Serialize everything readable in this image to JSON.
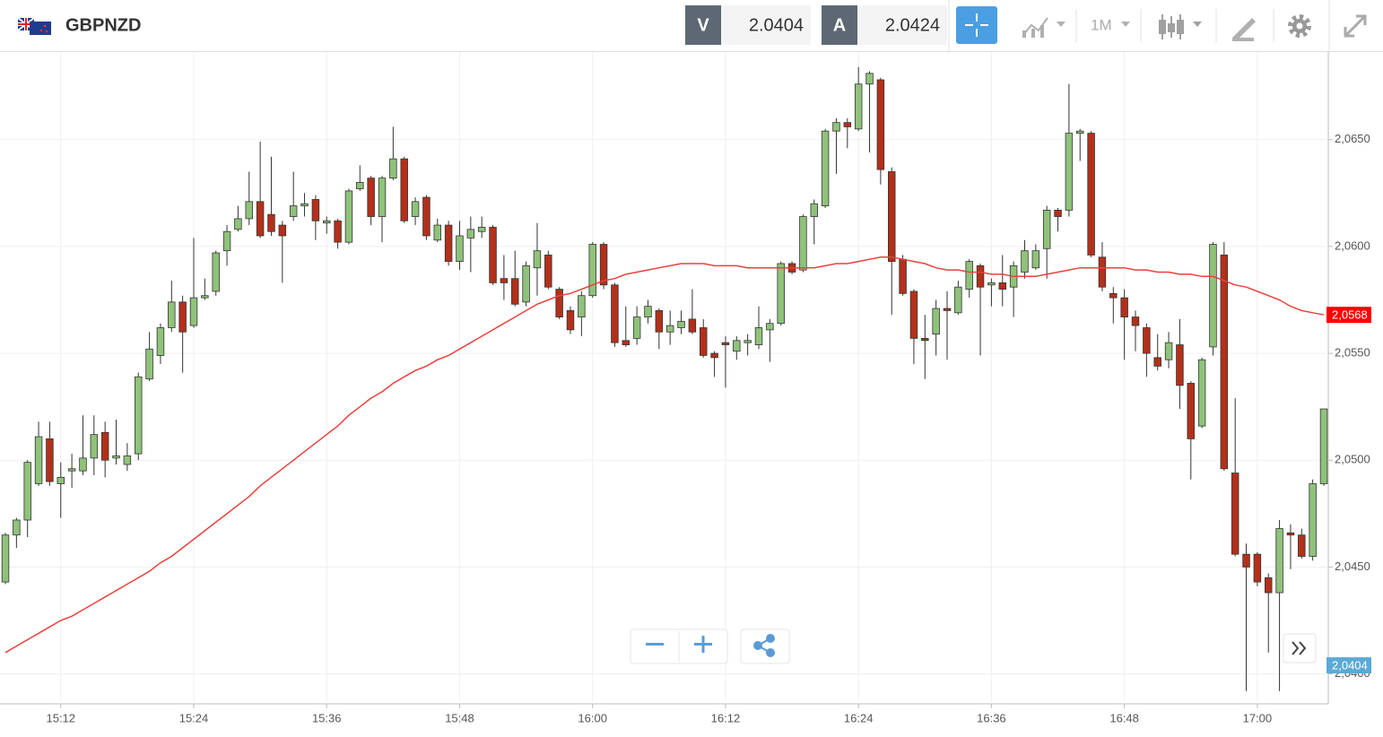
{
  "header": {
    "symbol": "GBPNZD",
    "bid_label": "V",
    "bid": "2.0404",
    "ask_label": "A",
    "ask": "2.0424",
    "timeframe": "1M"
  },
  "chart_data": {
    "type": "candlestick",
    "categories": [
      null,
      null,
      null,
      null,
      null,
      "15:12",
      null,
      null,
      null,
      null,
      null,
      null,
      null,
      null,
      null,
      null,
      null,
      "15:24",
      null,
      null,
      null,
      null,
      null,
      null,
      null,
      null,
      null,
      null,
      null,
      "15:36",
      null,
      null,
      null,
      null,
      null,
      null,
      null,
      null,
      null,
      null,
      null,
      "15:48",
      null,
      null,
      null,
      null,
      null,
      null,
      null,
      null,
      null,
      null,
      null,
      "16:00",
      null,
      null,
      null,
      null,
      null,
      null,
      null,
      null,
      null,
      null,
      null,
      "16:12",
      null,
      null,
      null,
      null,
      null,
      null,
      null,
      null,
      null,
      null,
      null,
      "16:24",
      null,
      null,
      null,
      null,
      null,
      null,
      null,
      null,
      null,
      null,
      null,
      "16:36",
      null,
      null,
      null,
      null,
      null,
      null,
      null,
      null,
      null,
      null,
      null,
      "16:48",
      null,
      null,
      null,
      null,
      null,
      null,
      null,
      null,
      null,
      null,
      null,
      "17:00",
      null,
      null,
      null,
      null,
      null,
      null
    ],
    "open": [
      2.0443,
      2.0465,
      2.0472,
      2.0489,
      2.051,
      2.0489,
      2.0495,
      2.0495,
      2.0501,
      2.0513,
      2.0501,
      2.0498,
      2.0503,
      2.0538,
      2.0549,
      2.0562,
      2.0574,
      2.0563,
      2.0576,
      2.0579,
      2.0598,
      2.0608,
      2.0613,
      2.0621,
      2.0615,
      2.061,
      2.0614,
      2.0619,
      2.0622,
      2.0611,
      2.0612,
      2.0602,
      2.0627,
      2.0632,
      2.0614,
      2.0632,
      2.0641,
      2.0614,
      2.0623,
      2.0603,
      2.061,
      2.0593,
      2.0604,
      2.0607,
      2.0609,
      2.0585,
      2.0585,
      2.0574,
      2.059,
      2.0596,
      2.058,
      2.057,
      2.0567,
      2.0577,
      2.0601,
      2.0582,
      2.0556,
      2.0557,
      2.0567,
      2.057,
      2.056,
      2.0562,
      2.0566,
      2.0562,
      2.055,
      2.0555,
      2.0551,
      2.0555,
      2.0554,
      2.0561,
      2.0564,
      2.0592,
      2.0589,
      2.0614,
      2.0619,
      2.0654,
      2.0658,
      2.0655,
      2.0676,
      2.0678,
      2.0635,
      2.0594,
      2.0579,
      2.0557,
      2.0559,
      2.0571,
      2.0569,
      2.058,
      2.0591,
      2.0582,
      2.0583,
      2.0581,
      2.0588,
      2.059,
      2.0599,
      2.0617,
      2.0617,
      2.0653,
      2.0653,
      2.0595,
      2.0578,
      2.0576,
      2.0567,
      2.0562,
      2.0548,
      2.0547,
      2.0554,
      2.0536,
      2.0516,
      2.0553,
      2.0596,
      2.0494,
      2.0456,
      2.0456,
      2.0445,
      2.0438,
      2.0466,
      2.0465,
      2.0455,
      2.0489
    ],
    "high": [
      2.0466,
      2.0473,
      2.05,
      2.0518,
      2.0518,
      2.0499,
      2.0503,
      2.0521,
      2.0521,
      2.0518,
      2.0519,
      2.0508,
      2.0541,
      2.056,
      2.0564,
      2.0584,
      2.0577,
      2.0604,
      2.0585,
      2.0598,
      2.061,
      2.0619,
      2.0635,
      2.0649,
      2.0642,
      2.0612,
      2.0635,
      2.0625,
      2.0624,
      2.0614,
      2.0613,
      2.0627,
      2.0638,
      2.0633,
      2.0633,
      2.0656,
      2.0642,
      2.0623,
      2.0624,
      2.0613,
      2.0612,
      2.0612,
      2.0614,
      2.0614,
      2.061,
      2.0596,
      2.0598,
      2.0593,
      2.0611,
      2.0598,
      2.0581,
      2.0572,
      2.0579,
      2.0602,
      2.0602,
      2.0583,
      2.0572,
      2.0572,
      2.0575,
      2.0571,
      2.057,
      2.057,
      2.058,
      2.0566,
      2.0551,
      2.0558,
      2.0558,
      2.0559,
      2.0572,
      2.0566,
      2.0593,
      2.0593,
      2.0615,
      2.0622,
      2.0655,
      2.066,
      2.066,
      2.0684,
      2.0682,
      2.0679,
      2.0637,
      2.0596,
      2.058,
      2.0568,
      2.0575,
      2.0579,
      2.0584,
      2.0594,
      2.0592,
      2.0585,
      2.0596,
      2.0593,
      2.0603,
      2.0601,
      2.0619,
      2.0618,
      2.0676,
      2.0655,
      2.0654,
      2.0602,
      2.0581,
      2.058,
      2.057,
      2.0564,
      2.0559,
      2.056,
      2.0566,
      2.0537,
      2.0548,
      2.0602,
      2.0602,
      2.0529,
      2.0461,
      2.0457,
      2.0447,
      2.0472,
      2.047,
      2.0468,
      2.0491,
      2.0524
    ],
    "low": [
      2.0442,
      2.0459,
      2.0464,
      2.0488,
      2.0488,
      2.0473,
      2.0487,
      2.0493,
      2.0493,
      2.0492,
      2.0498,
      2.0495,
      2.05,
      2.0537,
      2.0545,
      2.056,
      2.0541,
      2.0562,
      2.0575,
      2.0577,
      2.0591,
      2.0607,
      2.061,
      2.0604,
      2.0605,
      2.0583,
      2.0612,
      2.0614,
      2.0603,
      2.0606,
      2.0599,
      2.0601,
      2.0626,
      2.061,
      2.0602,
      2.0631,
      2.0611,
      2.061,
      2.0603,
      2.0602,
      2.0591,
      2.0589,
      2.0588,
      2.0604,
      2.0582,
      2.0575,
      2.0572,
      2.0572,
      2.0577,
      2.058,
      2.0566,
      2.0559,
      2.0558,
      2.0576,
      2.058,
      2.0553,
      2.0553,
      2.0554,
      2.0564,
      2.0552,
      2.0554,
      2.0559,
      2.0559,
      2.0548,
      2.0539,
      2.0534,
      2.0547,
      2.0549,
      2.0552,
      2.0546,
      2.0563,
      2.0587,
      2.0588,
      2.0601,
      2.0618,
      2.0634,
      2.0646,
      2.0654,
      2.0644,
      2.0629,
      2.0568,
      2.0577,
      2.0545,
      2.0538,
      2.0549,
      2.0547,
      2.0568,
      2.0576,
      2.0549,
      2.0572,
      2.0572,
      2.0567,
      2.0585,
      2.0589,
      2.0585,
      2.0607,
      2.0614,
      2.064,
      2.0595,
      2.0579,
      2.0564,
      2.0547,
      2.0551,
      2.0539,
      2.0542,
      2.0543,
      2.0524,
      2.0491,
      2.0515,
      2.0549,
      2.0495,
      2.0455,
      2.0392,
      2.0441,
      2.041,
      2.0392,
      2.0449,
      2.0454,
      2.0453,
      2.0488
    ],
    "close": [
      2.0465,
      2.0472,
      2.0499,
      2.0511,
      2.049,
      2.0492,
      2.0496,
      2.0501,
      2.0512,
      2.05,
      2.0502,
      2.0502,
      2.0539,
      2.0552,
      2.0562,
      2.0574,
      2.056,
      2.0576,
      2.0577,
      2.0597,
      2.0607,
      2.0613,
      2.0621,
      2.0605,
      2.0607,
      2.0605,
      2.0619,
      2.062,
      2.0612,
      2.0612,
      2.0602,
      2.0626,
      2.063,
      2.0614,
      2.0632,
      2.0641,
      2.0612,
      2.0621,
      2.0605,
      2.061,
      2.0593,
      2.0605,
      2.0608,
      2.0609,
      2.0583,
      2.0583,
      2.0573,
      2.0591,
      2.0598,
      2.0581,
      2.0567,
      2.0561,
      2.0577,
      2.0601,
      2.0582,
      2.0555,
      2.0554,
      2.0567,
      2.0572,
      2.056,
      2.0563,
      2.0565,
      2.056,
      2.0549,
      2.0548,
      2.0554,
      2.0556,
      2.0556,
      2.0562,
      2.0564,
      2.0592,
      2.0588,
      2.0614,
      2.062,
      2.0654,
      2.0658,
      2.0656,
      2.0676,
      2.0681,
      2.0636,
      2.0593,
      2.0578,
      2.0557,
      2.0556,
      2.0571,
      2.057,
      2.0581,
      2.0593,
      2.0581,
      2.0583,
      2.058,
      2.0591,
      2.0598,
      2.0598,
      2.0617,
      2.0614,
      2.0653,
      2.0654,
      2.0596,
      2.0581,
      2.0576,
      2.0567,
      2.0563,
      2.055,
      2.0544,
      2.0555,
      2.0535,
      2.051,
      2.0547,
      2.0601,
      2.0496,
      2.0456,
      2.045,
      2.0443,
      2.0438,
      2.0468,
      2.0465,
      2.0455,
      2.0489,
      2.0524
    ],
    "up_color": "#8fc27a",
    "down_color": "#b3301a",
    "ma": {
      "color": "#e8413c",
      "values": [
        2.041,
        2.0413,
        2.0416,
        2.0419,
        2.0422,
        2.0425,
        2.0427,
        2.043,
        2.0433,
        2.0436,
        2.0439,
        2.0442,
        2.0445,
        2.0448,
        2.0452,
        2.0455,
        2.0459,
        2.0463,
        2.0467,
        2.0471,
        2.0475,
        2.0479,
        2.0483,
        2.0488,
        2.0492,
        2.0496,
        2.05,
        2.0504,
        2.0508,
        2.0512,
        2.0516,
        2.0521,
        2.0525,
        2.0529,
        2.0532,
        2.0536,
        2.0539,
        2.0542,
        2.0544,
        2.0547,
        2.0549,
        2.0552,
        2.0555,
        2.0558,
        2.0561,
        2.0564,
        2.0567,
        2.057,
        2.0573,
        2.0575,
        2.0577,
        2.0578,
        2.058,
        2.0582,
        2.0584,
        2.0585,
        2.0587,
        2.0588,
        2.0589,
        2.059,
        2.0591,
        2.0592,
        2.0592,
        2.0592,
        2.0591,
        2.0591,
        2.0591,
        2.059,
        2.059,
        2.059,
        2.059,
        2.059,
        2.059,
        2.059,
        2.0591,
        2.0592,
        2.0592,
        2.0593,
        2.0594,
        2.0595,
        2.0595,
        2.0594,
        2.0593,
        2.0592,
        2.059,
        2.0589,
        2.0589,
        2.0588,
        2.0588,
        2.0587,
        2.0587,
        2.0586,
        2.0586,
        2.0586,
        2.0587,
        2.0588,
        2.0589,
        2.059,
        2.059,
        2.059,
        2.059,
        2.059,
        2.0589,
        2.0589,
        2.0588,
        2.0588,
        2.0587,
        2.0587,
        2.0586,
        2.0586,
        2.0584,
        2.0582,
        2.0581,
        2.0579,
        2.0577,
        2.0575,
        2.0572,
        2.057,
        2.0569,
        2.0568
      ]
    },
    "ma_marker": {
      "value": 2.0568,
      "label": "2,0568",
      "color": "#ff0000"
    },
    "price_marker": {
      "value": 2.0404,
      "label": "2,0404",
      "color": "#5aa9d6"
    },
    "ylim": [
      2.0386,
      2.0691
    ],
    "yticks": [
      {
        "value": 2.04,
        "label": "2,0400"
      },
      {
        "value": 2.045,
        "label": "2,0450"
      },
      {
        "value": 2.05,
        "label": "2,0500"
      },
      {
        "value": 2.055,
        "label": "2,0550"
      },
      {
        "value": 2.06,
        "label": "2,0600"
      },
      {
        "value": 2.065,
        "label": "2,0650"
      }
    ],
    "grid": true
  }
}
